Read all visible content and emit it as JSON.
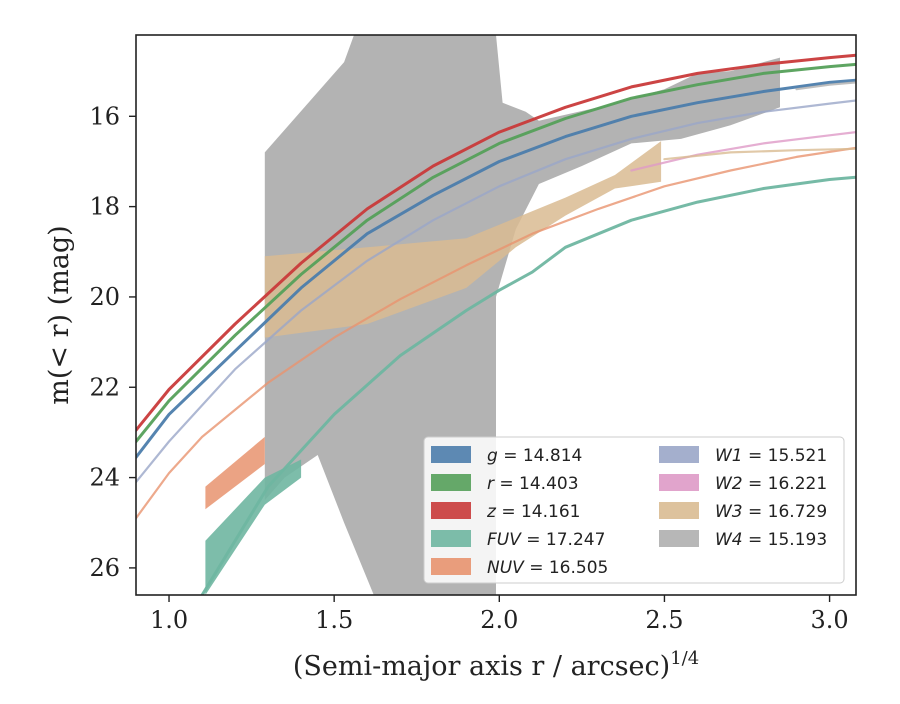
{
  "chart_data": {
    "type": "line",
    "xlabel": "(Semi-major axis r / arcsec)",
    "xlabel_exponent": "1/4",
    "ylabel": "m(< r) (mag)",
    "xlim": [
      0.9,
      3.08
    ],
    "ylim": [
      26.6,
      14.2
    ],
    "y_inverted": true,
    "grid": false,
    "legend_position": "lower-right",
    "x_ticks": [
      1.0,
      1.5,
      2.0,
      2.5,
      3.0
    ],
    "x_tick_labels": [
      "1.0",
      "1.5",
      "2.0",
      "2.5",
      "3.0"
    ],
    "y_ticks": [
      16,
      18,
      20,
      22,
      24,
      26
    ],
    "y_tick_labels": [
      "16",
      "18",
      "20",
      "22",
      "24",
      "26"
    ],
    "series": [
      {
        "name": "g",
        "legend_label": "g = 14.814",
        "color": "#4C7DAC",
        "band_x": [
          0.9,
          3.08
        ],
        "band_y": [
          [
            23.6,
            23.5
          ],
          [
            15.25,
            15.15
          ]
        ],
        "x": [
          0.9,
          1.0,
          1.2,
          1.4,
          1.6,
          1.8,
          2.0,
          2.2,
          2.4,
          2.6,
          2.8,
          3.0,
          3.08
        ],
        "y": [
          23.55,
          22.6,
          21.2,
          19.8,
          18.6,
          17.75,
          17.0,
          16.45,
          16.0,
          15.7,
          15.45,
          15.25,
          15.2
        ]
      },
      {
        "name": "r",
        "legend_label": "r = 14.403",
        "color": "#55A05A",
        "x": [
          0.9,
          1.0,
          1.2,
          1.4,
          1.6,
          1.8,
          2.0,
          2.2,
          2.4,
          2.6,
          2.8,
          3.0,
          3.08
        ],
        "y": [
          23.2,
          22.3,
          20.85,
          19.5,
          18.3,
          17.35,
          16.6,
          16.05,
          15.6,
          15.3,
          15.05,
          14.9,
          14.85
        ]
      },
      {
        "name": "z",
        "legend_label": "z = 14.161",
        "color": "#C93A3A",
        "x": [
          0.9,
          1.0,
          1.2,
          1.4,
          1.6,
          1.8,
          2.0,
          2.2,
          2.4,
          2.6,
          2.8,
          3.0,
          3.08
        ],
        "y": [
          22.95,
          22.05,
          20.6,
          19.25,
          18.05,
          17.1,
          16.35,
          15.8,
          15.35,
          15.05,
          14.85,
          14.7,
          14.65
        ]
      },
      {
        "name": "FUV",
        "legend_label": "FUV = 17.247",
        "color": "#6FB6A1",
        "x": [
          1.1,
          1.3,
          1.5,
          1.7,
          1.9,
          2.0,
          2.1,
          2.2,
          2.4,
          2.6,
          2.8,
          3.0,
          3.08
        ],
        "y": [
          26.6,
          24.2,
          22.6,
          21.3,
          20.3,
          19.85,
          19.45,
          18.9,
          18.3,
          17.9,
          17.6,
          17.4,
          17.35
        ]
      },
      {
        "name": "NUV",
        "legend_label": "NUV = 16.505",
        "color": "#E8936F",
        "x": [
          0.9,
          1.0,
          1.1,
          1.3,
          1.5,
          1.7,
          1.9,
          2.1,
          2.3,
          2.5,
          2.7,
          2.9,
          3.08
        ],
        "y": [
          24.9,
          23.9,
          23.1,
          21.9,
          20.9,
          20.05,
          19.3,
          18.6,
          18.05,
          17.55,
          17.2,
          16.9,
          16.7
        ]
      },
      {
        "name": "W1",
        "legend_label": "W1 = 15.521",
        "color": "#9AA6C8",
        "x": [
          0.9,
          1.0,
          1.2,
          1.4,
          1.6,
          1.8,
          2.0,
          2.2,
          2.4,
          2.6,
          2.8,
          3.0,
          3.08
        ],
        "y": [
          24.1,
          23.2,
          21.6,
          20.3,
          19.2,
          18.3,
          17.55,
          16.95,
          16.5,
          16.15,
          15.9,
          15.72,
          15.65
        ]
      },
      {
        "name": "W2",
        "legend_label": "W2 = 16.221",
        "color": "#DE9AC7",
        "x": [
          2.4,
          2.6,
          2.8,
          3.0,
          3.08
        ],
        "y": [
          17.2,
          16.85,
          16.6,
          16.42,
          16.35
        ]
      },
      {
        "name": "W3",
        "legend_label": "W3 = 16.729",
        "color": "#D9BB92",
        "x": [
          2.5,
          2.7,
          2.9,
          3.08
        ],
        "y": [
          16.95,
          16.8,
          16.75,
          16.72
        ]
      },
      {
        "name": "W4",
        "legend_label": "W4 = 15.193",
        "color": "#AFAFAF",
        "x": [
          2.9,
          3.0,
          3.08
        ],
        "y": [
          15.4,
          15.3,
          15.25
        ]
      }
    ],
    "bands": [
      {
        "series": "W4",
        "color": "#AFAFAF",
        "opacity": 0.95,
        "polygon": [
          [
            1.29,
            16.8
          ],
          [
            1.53,
            14.8
          ],
          [
            1.56,
            14.2
          ],
          [
            1.99,
            14.2
          ],
          [
            2.01,
            15.7
          ],
          [
            2.08,
            15.9
          ],
          [
            2.12,
            16.1
          ],
          [
            2.3,
            15.8
          ],
          [
            2.5,
            15.4
          ],
          [
            2.6,
            15.05
          ],
          [
            2.7,
            15.0
          ],
          [
            2.85,
            14.7
          ],
          [
            2.85,
            15.8
          ],
          [
            2.7,
            16.2
          ],
          [
            2.55,
            16.5
          ],
          [
            2.4,
            16.6
          ],
          [
            2.25,
            17.1
          ],
          [
            2.12,
            17.5
          ],
          [
            2.05,
            18.5
          ],
          [
            1.99,
            20.0
          ],
          [
            1.99,
            26.6
          ],
          [
            1.62,
            26.6
          ],
          [
            1.53,
            25.0
          ],
          [
            1.45,
            23.5
          ],
          [
            1.35,
            24.0
          ],
          [
            1.29,
            24.5
          ]
        ]
      },
      {
        "series": "W3",
        "color": "#D9BB92",
        "opacity": 0.85,
        "polygon": [
          [
            1.29,
            19.1
          ],
          [
            1.6,
            18.9
          ],
          [
            1.9,
            18.7
          ],
          [
            2.2,
            17.8
          ],
          [
            2.35,
            17.3
          ],
          [
            2.49,
            16.55
          ],
          [
            2.49,
            17.45
          ],
          [
            2.35,
            17.6
          ],
          [
            2.2,
            18.2
          ],
          [
            2.05,
            18.9
          ],
          [
            1.9,
            19.8
          ],
          [
            1.6,
            20.6
          ],
          [
            1.29,
            20.9
          ]
        ]
      },
      {
        "series": "NUV",
        "color": "#E8936F",
        "opacity": 0.85,
        "polygon": [
          [
            1.11,
            24.2
          ],
          [
            1.29,
            23.1
          ],
          [
            1.29,
            23.7
          ],
          [
            1.11,
            24.7
          ]
        ]
      },
      {
        "series": "FUV",
        "color": "#6FB6A1",
        "opacity": 0.9,
        "polygon": [
          [
            1.11,
            25.4
          ],
          [
            1.29,
            24.0
          ],
          [
            1.4,
            23.6
          ],
          [
            1.4,
            24.0
          ],
          [
            1.29,
            24.6
          ],
          [
            1.11,
            26.6
          ]
        ]
      }
    ],
    "legend": {
      "col1": [
        "g = 14.814",
        "r = 14.403",
        "z = 14.161",
        "FUV = 17.247",
        "NUV = 16.505"
      ],
      "col2": [
        "W1 = 15.521",
        "W2 = 16.221",
        "W3 = 16.729",
        "W4 = 15.193"
      ]
    }
  }
}
